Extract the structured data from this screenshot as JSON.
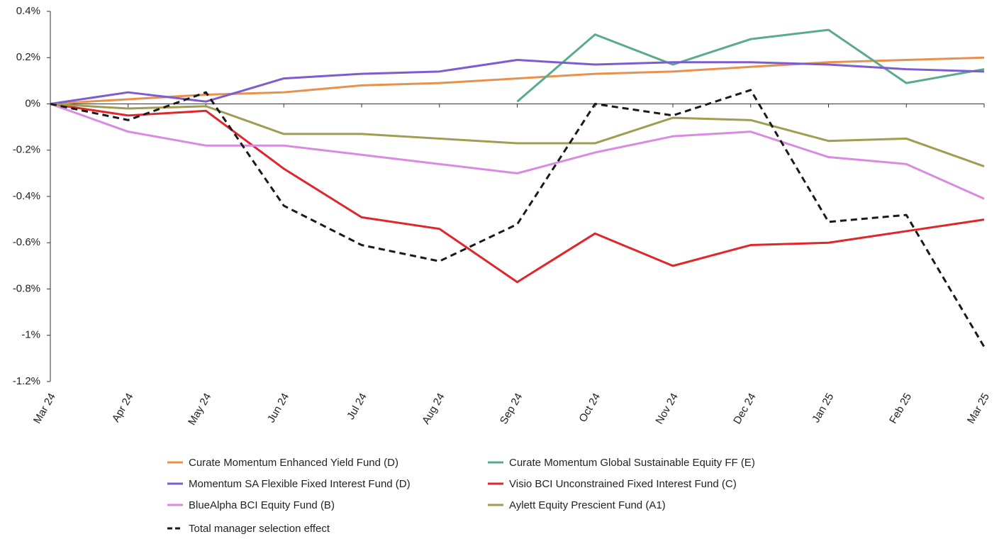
{
  "chart_data": {
    "type": "line",
    "categories": [
      "Mar 24",
      "Apr 24",
      "May 24",
      "Jun 24",
      "Jul 24",
      "Aug 24",
      "Sep 24",
      "Oct 24",
      "Nov 24",
      "Dec 24",
      "Jan 25",
      "Feb 25",
      "Mar 25"
    ],
    "series": [
      {
        "name": "Curate Momentum Enhanced Yield Fund (D)",
        "color": "#e8914f",
        "values": [
          0,
          0.02,
          0.04,
          0.05,
          0.08,
          0.09,
          0.11,
          0.13,
          0.14,
          0.16,
          0.18,
          0.19,
          0.2
        ]
      },
      {
        "name": "Curate Momentum Global Sustainable Equity FF (E)",
        "color": "#5aaa8f",
        "values": [
          null,
          null,
          null,
          null,
          null,
          null,
          0.01,
          0.3,
          0.17,
          0.28,
          0.32,
          0.09,
          0.15
        ]
      },
      {
        "name": "Momentum SA Flexible Fixed Interest Fund (D)",
        "color": "#7e5ccf",
        "values": [
          0,
          0.05,
          0.01,
          0.11,
          0.13,
          0.14,
          0.19,
          0.17,
          0.18,
          0.18,
          0.17,
          0.15,
          0.14
        ]
      },
      {
        "name": "Visio BCI Unconstrained Fixed Interest Fund (C)",
        "color": "#e0262b",
        "values": [
          0,
          -0.05,
          -0.03,
          -0.28,
          -0.49,
          -0.54,
          -0.77,
          -0.56,
          -0.7,
          -0.61,
          -0.6,
          -0.55,
          -0.5
        ]
      },
      {
        "name": "BlueAlpha BCI Equity Fund (B)",
        "color": "#d98be0",
        "values": [
          0,
          -0.12,
          -0.18,
          -0.18,
          -0.22,
          -0.26,
          -0.3,
          -0.21,
          -0.14,
          -0.12,
          -0.23,
          -0.26,
          -0.41
        ]
      },
      {
        "name": "Aylett Equity Prescient Fund (A1)",
        "color": "#9f9d52",
        "values": [
          0,
          -0.02,
          -0.01,
          -0.13,
          -0.13,
          -0.15,
          -0.17,
          -0.17,
          -0.06,
          -0.07,
          -0.16,
          -0.15,
          -0.27
        ]
      },
      {
        "name": "Total manager selection effect",
        "color": "#1a1a1a",
        "dashed": true,
        "values": [
          0,
          -0.07,
          0.05,
          -0.44,
          -0.61,
          -0.68,
          -0.52,
          0.0,
          -0.05,
          0.06,
          -0.51,
          -0.48,
          -1.05
        ]
      }
    ],
    "ylim": [
      -1.2,
      0.4
    ],
    "yticks": [
      {
        "value": 0.4,
        "label": "0.4%"
      },
      {
        "value": 0.2,
        "label": "0.2%"
      },
      {
        "value": 0,
        "label": "0%"
      },
      {
        "value": -0.2,
        "label": "-0.2%"
      },
      {
        "value": -0.4,
        "label": "-0.4%"
      },
      {
        "value": -0.6,
        "label": "-0.6%"
      },
      {
        "value": -0.8,
        "label": "-0.8%"
      },
      {
        "value": -1,
        "label": "-1%"
      },
      {
        "value": -1.2,
        "label": "-1.2%"
      }
    ],
    "grid": false,
    "legend": "bottom"
  }
}
